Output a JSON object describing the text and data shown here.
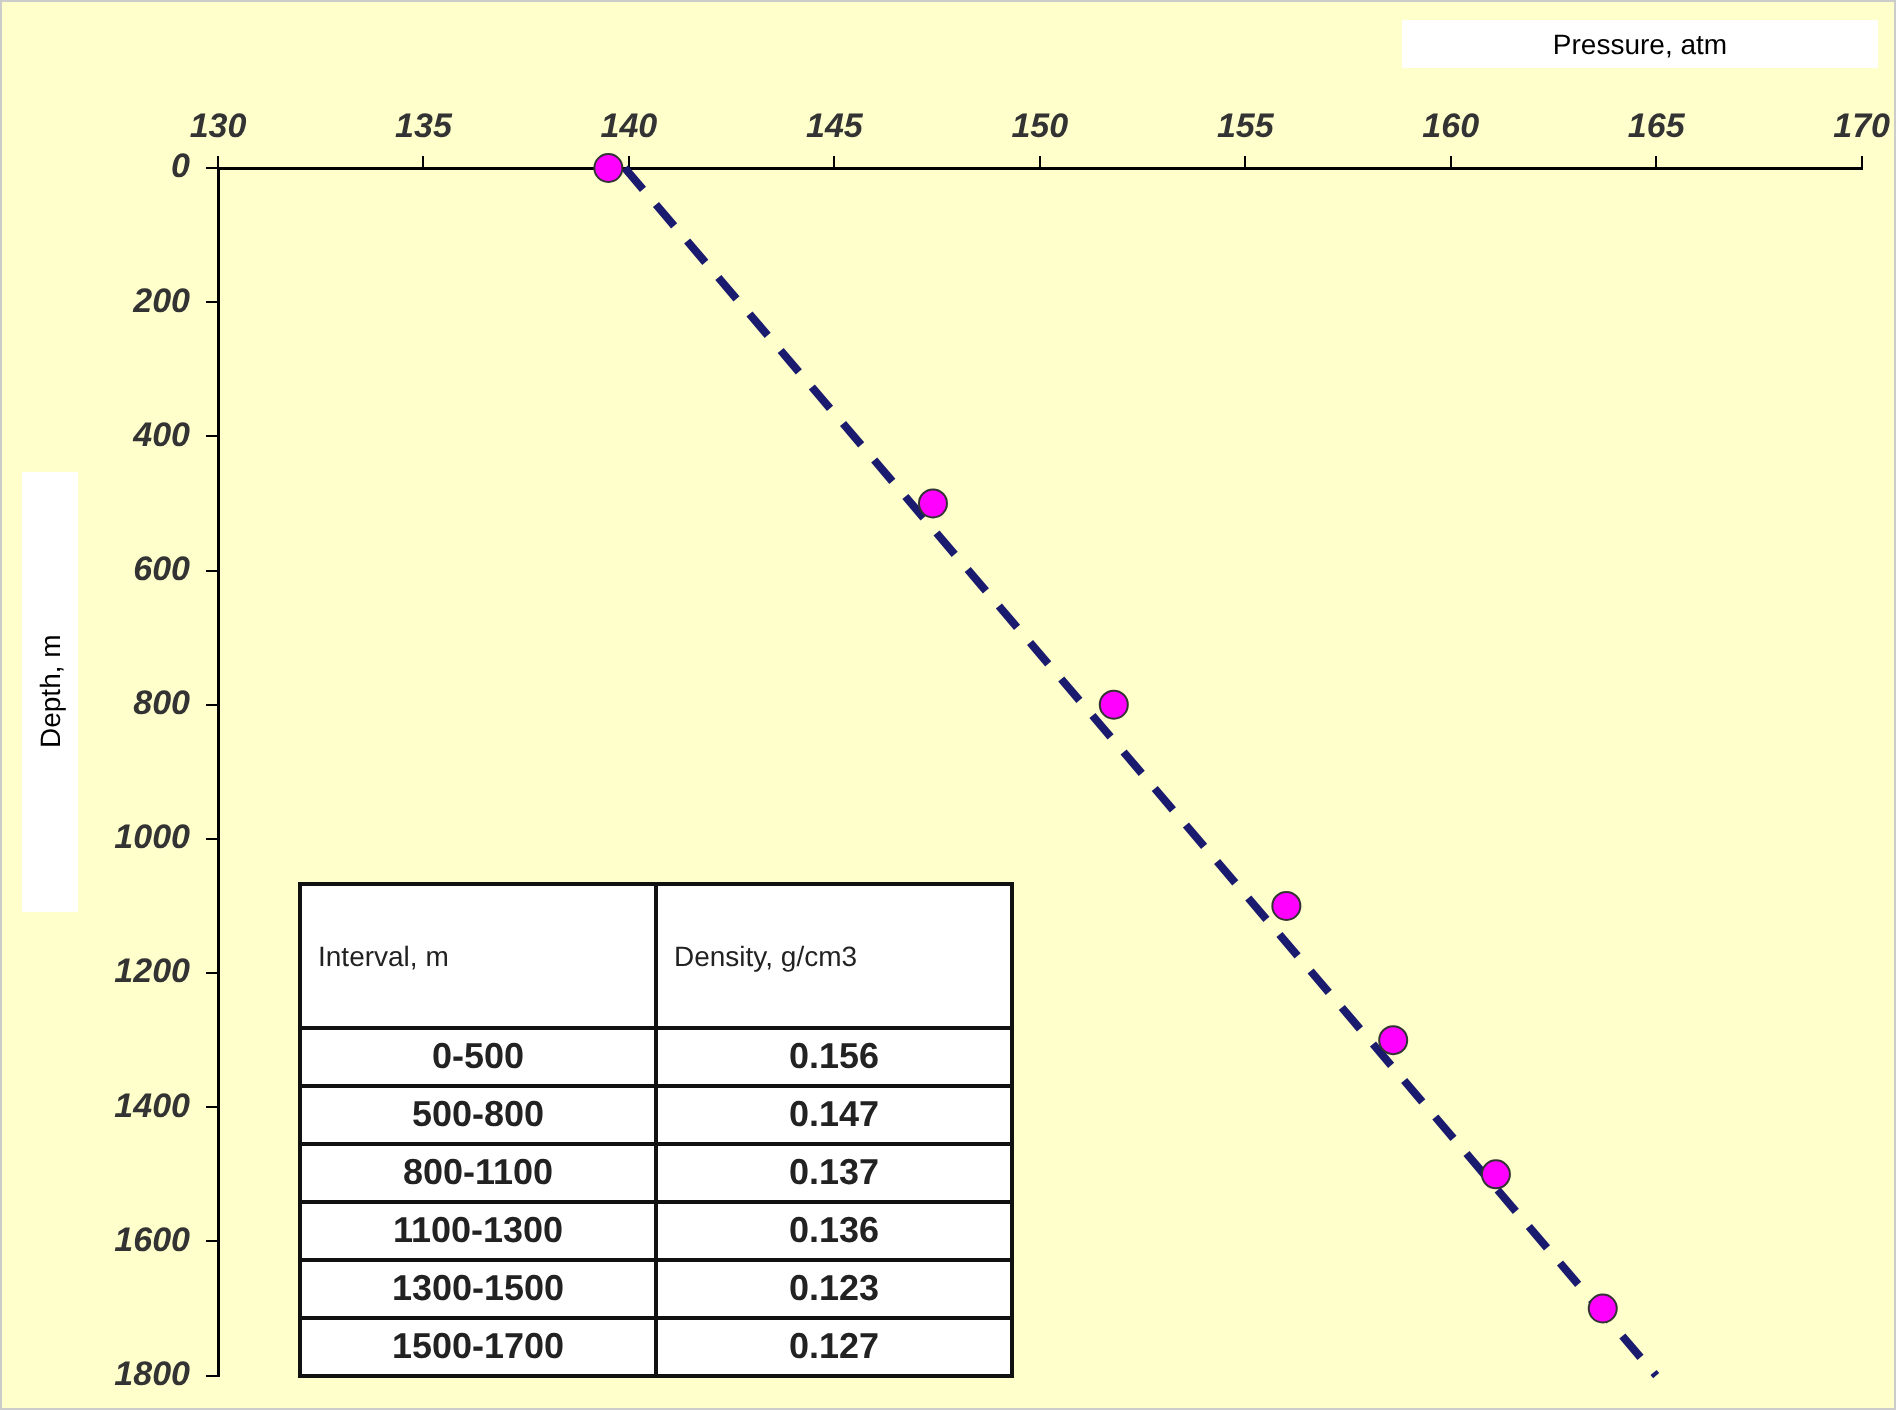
{
  "chart_data": {
    "type": "scatter",
    "xlabel": "Pressure, atm",
    "ylabel": "Depth, m",
    "xlim": [
      130,
      170
    ],
    "xticks": [
      130,
      135,
      140,
      145,
      150,
      155,
      160,
      165,
      170
    ],
    "ylim": [
      1800,
      0
    ],
    "yticks": [
      0,
      200,
      400,
      600,
      800,
      1000,
      1200,
      1400,
      1600,
      1800
    ],
    "grid": false,
    "legend": false,
    "marker": "circle",
    "series": [
      {
        "color": "#ff00ff",
        "x": [
          139.5,
          147.4,
          151.8,
          156.0,
          158.6,
          161.1,
          163.7
        ],
        "values": [
          0,
          500,
          800,
          1100,
          1300,
          1500,
          1700
        ]
      },
      {
        "type": "line",
        "color": "#1a1a6e",
        "line_style": "dashed",
        "marker": "none",
        "x": [
          139.9,
          165.0
        ],
        "values": [
          0,
          1800
        ]
      }
    ],
    "annotations": [
      "Interval, m",
      "Density, g/cm3",
      "0-500",
      "0.156",
      "500-800",
      "0.147",
      "800-1100",
      "0.137",
      "1100-1300",
      "0.136",
      "1300-1500",
      "0.123",
      "1500-1700",
      "0.127"
    ]
  }
}
